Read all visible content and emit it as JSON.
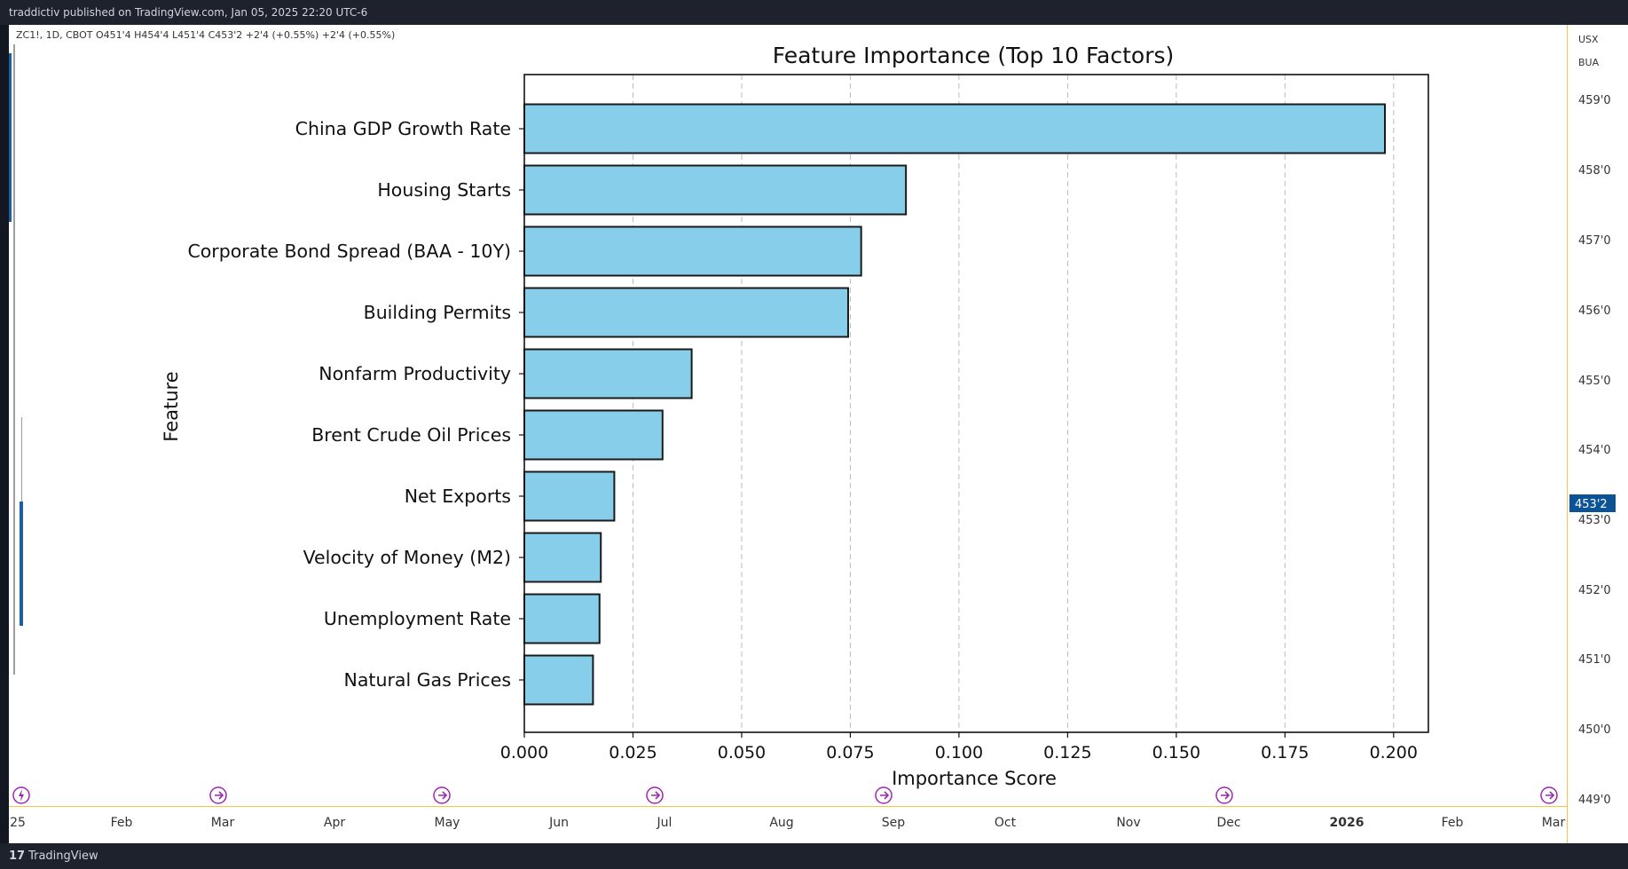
{
  "header": {
    "published_text": "traddictiv published on TradingView.com, Jan 05, 2025 22:20 UTC-6"
  },
  "symbol_bar": {
    "text": "ZC1!, 1D, CBOT  O451'4  H454'4  L451'4  C453'2  +2'4 (+0.55%)  +2'4 (+0.55%)"
  },
  "right_scale": {
    "tags": [
      "USX",
      "BUA"
    ],
    "labels": [
      "459'0",
      "458'0",
      "457'0",
      "456'0",
      "455'0",
      "454'0",
      "453'0",
      "452'0",
      "451'0",
      "450'0",
      "449'0"
    ],
    "current_price": "453'2",
    "current_price_color": "#0b5394"
  },
  "time_axis": {
    "labels": [
      "25",
      "Feb",
      "Mar",
      "Apr",
      "May",
      "Jun",
      "Jul",
      "Aug",
      "Sep",
      "Oct",
      "Nov",
      "Dec",
      "2026",
      "Feb",
      "Mar"
    ]
  },
  "footer": {
    "brand": "TradingView",
    "logo_icon": "tradingview-logo-icon"
  },
  "event_markers": {
    "icons": [
      "lightning-icon",
      "arrow-circle-icon",
      "arrow-circle-icon",
      "arrow-circle-icon",
      "arrow-circle-icon",
      "arrow-circle-icon",
      "arrow-circle-icon"
    ],
    "color": "#9c27b0"
  },
  "chart_data": {
    "type": "bar",
    "orientation": "horizontal",
    "title": "Feature Importance (Top 10 Factors)",
    "xlabel": "Importance Score",
    "ylabel": "Feature",
    "categories": [
      "China GDP Growth Rate",
      "Housing Starts",
      "Corporate Bond Spread (BAA - 10Y)",
      "Building Permits",
      "Nonfarm Productivity",
      "Brent Crude Oil Prices",
      "Net Exports",
      "Velocity of Money (M2)",
      "Unemployment Rate",
      "Natural Gas Prices"
    ],
    "values": [
      0.198,
      0.0878,
      0.0775,
      0.0745,
      0.0385,
      0.0318,
      0.0207,
      0.0176,
      0.0173,
      0.0158
    ],
    "xlim": [
      0,
      0.208
    ],
    "xticks": [
      "0.000",
      "0.025",
      "0.050",
      "0.075",
      "0.100",
      "0.125",
      "0.150",
      "0.175",
      "0.200"
    ],
    "xtick_values": [
      0,
      0.025,
      0.05,
      0.075,
      0.1,
      0.125,
      0.15,
      0.175,
      0.2
    ],
    "grid": "x-dashed",
    "bar_color": "#87ceeb",
    "edge_color": "#1a1a1a"
  }
}
